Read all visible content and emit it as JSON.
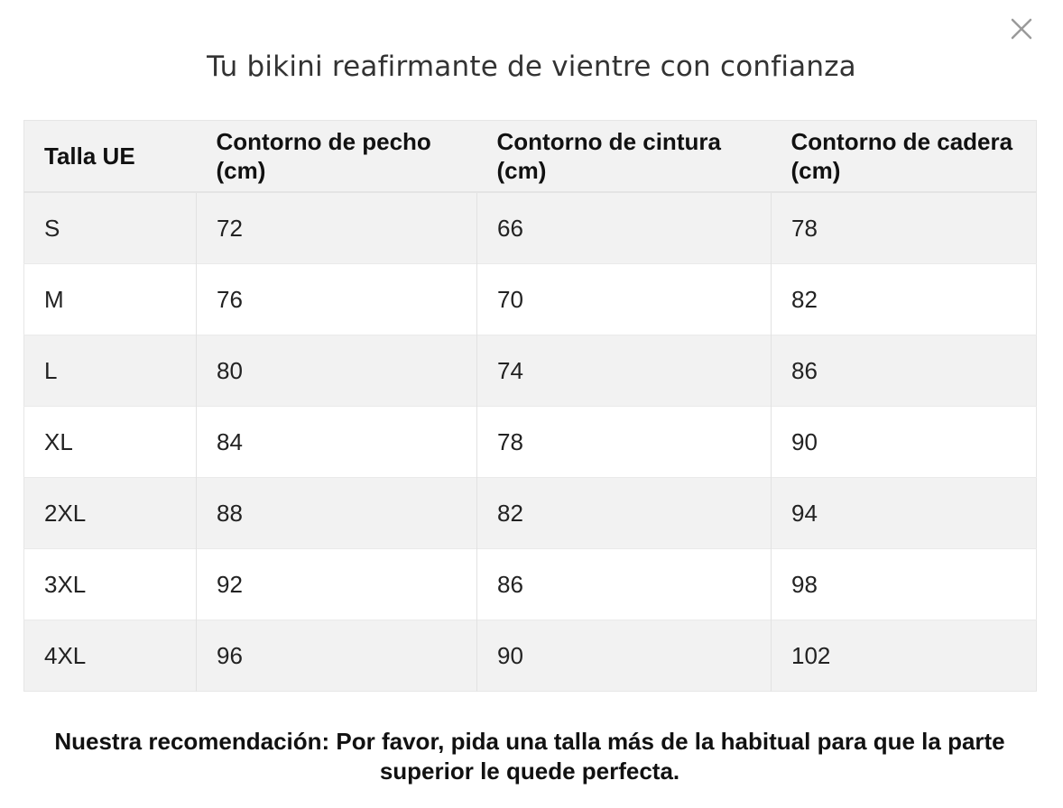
{
  "modal": {
    "title": "Tu bikini reafirmante de vientre con confianza",
    "close_icon": "close-icon"
  },
  "table": {
    "headers": [
      "Talla UE",
      "Contorno de pecho (cm)",
      "Contorno de cintura (cm)",
      "Contorno de cadera (cm)"
    ],
    "rows": [
      [
        "S",
        "72",
        "66",
        "78"
      ],
      [
        "M",
        "76",
        "70",
        "82"
      ],
      [
        "L",
        "80",
        "74",
        "86"
      ],
      [
        "XL",
        "84",
        "78",
        "90"
      ],
      [
        "2XL",
        "88",
        "82",
        "94"
      ],
      [
        "3XL",
        "92",
        "86",
        "98"
      ],
      [
        "4XL",
        "96",
        "90",
        "102"
      ]
    ]
  },
  "recommendation": "Nuestra recomendación: Por favor, pida una talla más de la habitual para que la parte superior le quede perfecta.",
  "colors": {
    "header_bg": "#f2f2f2",
    "stripe_bg": "#f2f2f2",
    "text": "#1a1a1a",
    "close_icon": "#9a9a9a"
  }
}
